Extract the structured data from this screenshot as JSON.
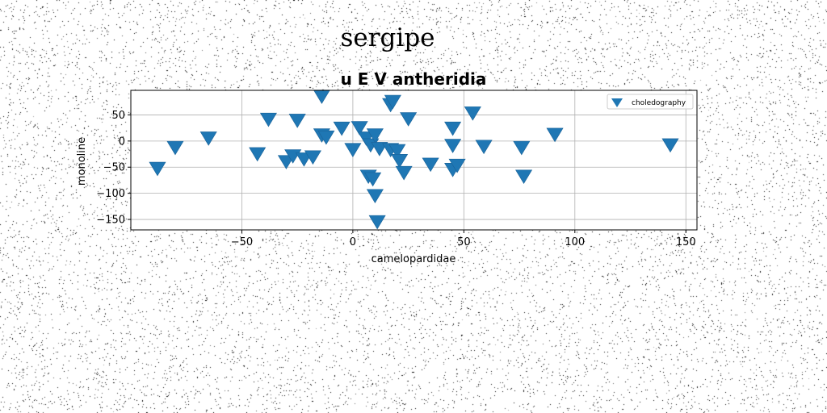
{
  "chart_data": {
    "type": "scatter",
    "suptitle": "sergipe",
    "title": "u E V antheridia",
    "xlabel": "camelopardidae",
    "ylabel": "monoline",
    "xlim": [
      -100,
      155
    ],
    "ylim": [
      -170,
      97
    ],
    "xticks": [
      -50,
      0,
      50,
      100,
      150
    ],
    "xtick_labels": [
      "−50",
      "0",
      "50",
      "100",
      "150"
    ],
    "yticks": [
      -150,
      -100,
      -50,
      0,
      50
    ],
    "ytick_labels": [
      "−150",
      "−100",
      "−50",
      "0",
      "50"
    ],
    "grid": true,
    "legend_position": "upper right",
    "marker": "triangle-down",
    "color": "#1f77b4",
    "series": [
      {
        "name": "choledography",
        "points": [
          [
            -88,
            -50
          ],
          [
            -80,
            -10
          ],
          [
            -65,
            8
          ],
          [
            -43,
            -22
          ],
          [
            -38,
            44
          ],
          [
            -30,
            -37
          ],
          [
            -27,
            -26
          ],
          [
            -25,
            42
          ],
          [
            -22,
            -32
          ],
          [
            -18,
            -28
          ],
          [
            -14,
            88
          ],
          [
            -14,
            14
          ],
          [
            -12,
            10
          ],
          [
            -5,
            27
          ],
          [
            0,
            -14
          ],
          [
            3,
            28
          ],
          [
            6,
            8
          ],
          [
            7,
            -65
          ],
          [
            8,
            -5
          ],
          [
            9,
            -70
          ],
          [
            10,
            -102
          ],
          [
            10,
            14
          ],
          [
            11,
            -152
          ],
          [
            12,
            -12
          ],
          [
            17,
            -14
          ],
          [
            17,
            72
          ],
          [
            18,
            78
          ],
          [
            20,
            -16
          ],
          [
            21,
            -35
          ],
          [
            23,
            -58
          ],
          [
            25,
            45
          ],
          [
            35,
            -42
          ],
          [
            45,
            27
          ],
          [
            45,
            -6
          ],
          [
            45,
            -52
          ],
          [
            47,
            -44
          ],
          [
            54,
            56
          ],
          [
            59,
            -8
          ],
          [
            76,
            -10
          ],
          [
            77,
            -65
          ],
          [
            91,
            15
          ],
          [
            143,
            -5
          ]
        ]
      }
    ]
  }
}
